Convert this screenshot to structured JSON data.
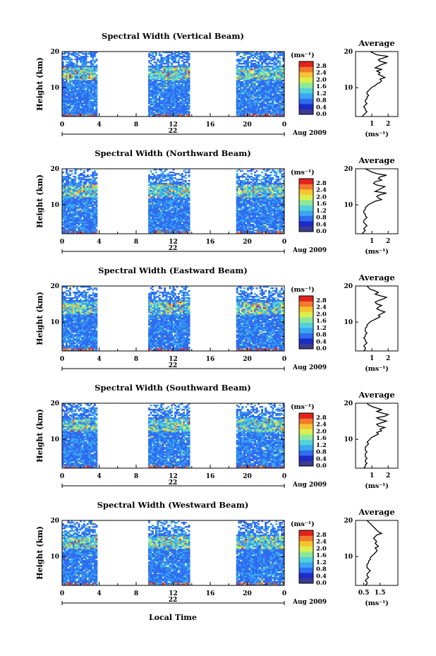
{
  "figure": {
    "panels": [
      {
        "title": "Spectral Width (Vertical Beam)",
        "day_label": "22",
        "date_label": "Aug 2009",
        "profile_xticks": [
          "1",
          "2"
        ],
        "profile_values_ms": [
          0.4,
          0.5,
          0.6,
          0.7,
          0.6,
          0.6,
          0.5,
          0.6,
          0.7,
          0.6,
          0.6,
          0.7,
          0.7,
          0.8,
          0.7,
          0.7,
          0.8,
          0.9,
          1.0,
          1.2,
          1.3,
          1.5,
          1.6,
          1.5,
          1.8,
          1.6,
          1.4,
          1.5,
          1.3,
          1.6,
          1.2,
          1.4,
          1.6,
          1.9,
          1.5,
          1.4,
          1.7,
          2.0,
          1.3,
          1.1,
          0.9
        ]
      },
      {
        "title": "Spectral Width (Northward Beam)",
        "day_label": "22",
        "date_label": "Aug 2009",
        "profile_xticks": [
          "1",
          "2"
        ],
        "profile_values_ms": [
          0.4,
          0.5,
          0.6,
          0.5,
          0.6,
          0.7,
          0.6,
          0.5,
          0.5,
          0.6,
          0.7,
          0.6,
          0.6,
          0.5,
          0.5,
          0.6,
          0.6,
          0.7,
          0.8,
          1.0,
          1.2,
          1.6,
          1.4,
          1.3,
          1.5,
          1.9,
          1.2,
          1.4,
          1.6,
          1.8,
          1.3,
          1.1,
          1.2,
          1.6,
          1.4,
          1.5,
          1.9,
          1.3,
          1.0,
          0.8,
          0.6
        ]
      },
      {
        "title": "Spectral Width (Eastward Beam)",
        "day_label": "22",
        "date_label": "Aug 2009",
        "profile_xticks": [
          "1",
          "2"
        ],
        "profile_values_ms": [
          0.5,
          0.6,
          0.6,
          0.5,
          0.6,
          0.7,
          0.6,
          0.6,
          0.5,
          0.6,
          0.6,
          0.7,
          0.6,
          0.6,
          0.6,
          0.7,
          0.7,
          0.8,
          0.9,
          1.1,
          1.3,
          1.5,
          1.4,
          1.6,
          1.8,
          1.5,
          1.3,
          1.4,
          1.6,
          1.3,
          1.2,
          1.4,
          1.7,
          1.9,
          1.5,
          1.2,
          1.4,
          1.2,
          0.9,
          0.8,
          0.7
        ]
      },
      {
        "title": "Spectral Width (Southward Beam)",
        "day_label": "22",
        "date_label": "Aug 2009",
        "profile_xticks": [
          "1",
          "2"
        ],
        "profile_values_ms": [
          0.5,
          0.6,
          0.6,
          0.7,
          0.6,
          0.6,
          0.7,
          0.6,
          0.6,
          0.6,
          0.7,
          0.6,
          0.6,
          0.6,
          0.7,
          0.8,
          0.7,
          0.8,
          0.9,
          1.0,
          1.2,
          1.4,
          1.3,
          1.6,
          1.5,
          1.8,
          1.4,
          1.3,
          1.6,
          1.9,
          1.5,
          1.3,
          1.8,
          2.0,
          1.6,
          1.3,
          1.6,
          1.3,
          1.0,
          0.8,
          0.7
        ]
      },
      {
        "title": "Spectral Width (Westward Beam)",
        "day_label": "22",
        "date_label": "Aug 2009",
        "profile_xticks": [
          "0.5",
          "1.5"
        ],
        "profile_values_ms": [
          0.6,
          0.7,
          0.7,
          0.6,
          0.7,
          0.8,
          0.7,
          0.7,
          0.8,
          0.9,
          0.8,
          0.7,
          0.7,
          0.7,
          0.8,
          0.8,
          0.9,
          0.9,
          1.0,
          1.1,
          1.2,
          1.3,
          1.3,
          1.2,
          1.4,
          1.3,
          1.2,
          1.3,
          1.2,
          1.1,
          1.2,
          1.3,
          1.6,
          1.4,
          1.3,
          1.2,
          1.1,
          1.0,
          0.9,
          0.8,
          0.7
        ]
      }
    ],
    "shared": {
      "x_axis_title": "Local Time",
      "y_axis_title": "Height (km)",
      "y_tick_labels": [
        "10",
        "20"
      ],
      "x_tick_labels": [
        "0",
        "4",
        "8",
        "12",
        "16",
        "20",
        "0"
      ],
      "colorbar_unit": "(ms⁻¹)",
      "colorbar_ticks": [
        "2.8",
        "2.4",
        "2.0",
        "1.6",
        "1.2",
        "0.8",
        "0.4",
        "0.0"
      ],
      "profile_title": "Average",
      "profile_ylabel_ticks": [
        "10",
        "20"
      ],
      "profile_unit": "(ms⁻¹)"
    },
    "colors": {
      "axis": "#000000",
      "colormap": [
        "#3b3b8f",
        "#1a2cc8",
        "#2f6cf0",
        "#39a7f2",
        "#52d2d8",
        "#8ee89a",
        "#d9f04e",
        "#f7c431",
        "#f37a2c",
        "#e2231d"
      ]
    }
  },
  "chart_data": [
    {
      "type": "heatmap",
      "title": "Spectral Width (Vertical Beam)",
      "xlabel": "Local Time",
      "ylabel": "Height (km)",
      "xlim": [
        0,
        24
      ],
      "ylim": [
        2,
        20
      ],
      "data_intervals_hours": [
        [
          0,
          3.8
        ],
        [
          9.3,
          13.8
        ],
        [
          18.8,
          24
        ]
      ],
      "colorbar_range": [
        0.0,
        2.8
      ],
      "colorbar_unit": "ms⁻¹"
    },
    {
      "type": "line",
      "title": "Average",
      "xlabel": "(ms⁻¹)",
      "ylabel": "",
      "xlim": [
        0,
        2.6
      ],
      "ylim": [
        2,
        20
      ],
      "series": [
        {
          "name": "",
          "heights_km_from": 2,
          "heights_km_to": 20
        }
      ]
    },
    {
      "type": "heatmap",
      "title": "Spectral Width (Northward Beam)",
      "xlabel": "Local Time",
      "ylabel": "Height (km)",
      "xlim": [
        0,
        24
      ],
      "ylim": [
        2,
        20
      ],
      "data_intervals_hours": [
        [
          0,
          3.8
        ],
        [
          9.3,
          13.8
        ],
        [
          18.8,
          24
        ]
      ],
      "colorbar_range": [
        0.0,
        2.8
      ],
      "colorbar_unit": "ms⁻¹"
    },
    {
      "type": "heatmap",
      "title": "Spectral Width (Eastward Beam)",
      "xlabel": "Local Time",
      "ylabel": "Height (km)",
      "xlim": [
        0,
        24
      ],
      "ylim": [
        2,
        20
      ],
      "data_intervals_hours": [
        [
          0,
          3.8
        ],
        [
          9.3,
          13.8
        ],
        [
          18.8,
          24
        ]
      ],
      "colorbar_range": [
        0.0,
        2.8
      ],
      "colorbar_unit": "ms⁻¹"
    },
    {
      "type": "heatmap",
      "title": "Spectral Width (Southward Beam)",
      "xlabel": "Local Time",
      "ylabel": "Height (km)",
      "xlim": [
        0,
        24
      ],
      "ylim": [
        2,
        20
      ],
      "data_intervals_hours": [
        [
          0,
          3.8
        ],
        [
          9.3,
          13.8
        ],
        [
          18.8,
          24
        ]
      ],
      "colorbar_range": [
        0.0,
        2.8
      ],
      "colorbar_unit": "ms⁻¹"
    },
    {
      "type": "heatmap",
      "title": "Spectral Width (Westward Beam)",
      "xlabel": "Local Time",
      "ylabel": "Height (km)",
      "xlim": [
        0,
        24
      ],
      "ylim": [
        2,
        20
      ],
      "data_intervals_hours": [
        [
          0,
          3.8
        ],
        [
          9.3,
          13.8
        ],
        [
          18.8,
          24
        ]
      ],
      "colorbar_range": [
        0.0,
        2.8
      ],
      "colorbar_unit": "ms⁻¹"
    }
  ]
}
